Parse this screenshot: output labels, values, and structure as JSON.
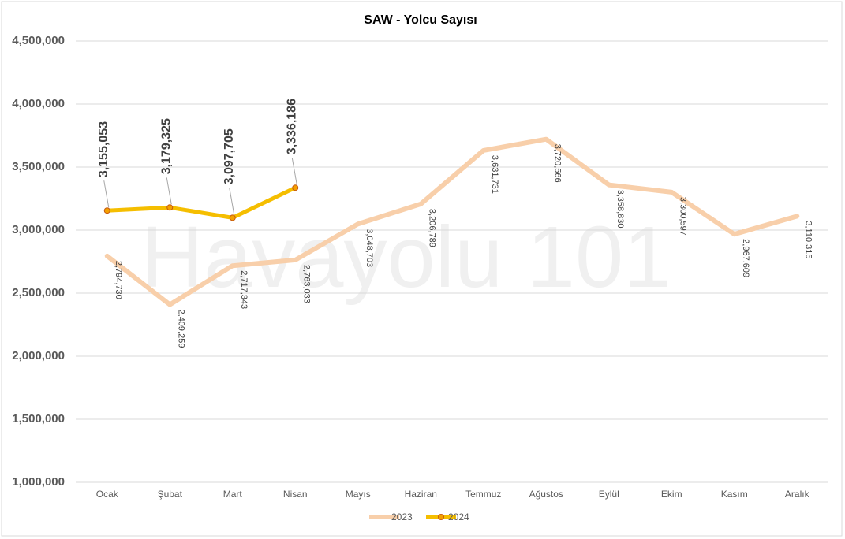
{
  "chart_data": {
    "type": "line",
    "title": "SAW - Yolcu Sayısı",
    "watermark": "Havayolu 101",
    "categories": [
      "Ocak",
      "Şubat",
      "Mart",
      "Nisan",
      "Mayıs",
      "Haziran",
      "Temmuz",
      "Ağustos",
      "Eylül",
      "Ekim",
      "Kasım",
      "Aralık"
    ],
    "series": [
      {
        "name": "2023",
        "color": "#f8cfaa",
        "values": [
          2794730,
          2409259,
          2717343,
          2763033,
          3048703,
          3206789,
          3631731,
          3720566,
          3358830,
          3300597,
          2967609,
          3110315
        ],
        "value_labels": [
          "2,794,730",
          "2,409,259",
          "2,717,343",
          "2,763,033",
          "3,048,703",
          "3,206,789",
          "3,631,731",
          "3,720,566",
          "3,358,830",
          "3,300,597",
          "2,967,609",
          "3,110,315"
        ]
      },
      {
        "name": "2024",
        "color": "#f5be00",
        "values": [
          3155053,
          3179325,
          3097705,
          3336186,
          null,
          null,
          null,
          null,
          null,
          null,
          null,
          null
        ],
        "value_labels": [
          "3,155,053",
          "3,179,325",
          "3,097,705",
          "3,336,186",
          null,
          null,
          null,
          null,
          null,
          null,
          null,
          null
        ]
      }
    ],
    "ylim": [
      1000000,
      4500000
    ],
    "yticks": [
      {
        "value": 1000000,
        "label": "1,000,000"
      },
      {
        "value": 1500000,
        "label": "1,500,000"
      },
      {
        "value": 2000000,
        "label": "2,000,000"
      },
      {
        "value": 2500000,
        "label": "2,500,000"
      },
      {
        "value": 3000000,
        "label": "3,000,000"
      },
      {
        "value": 3500000,
        "label": "3,500,000"
      },
      {
        "value": 4000000,
        "label": "4,000,000"
      },
      {
        "value": 4500000,
        "label": "4,500,000"
      }
    ],
    "grid": true,
    "legend": "bottom"
  }
}
